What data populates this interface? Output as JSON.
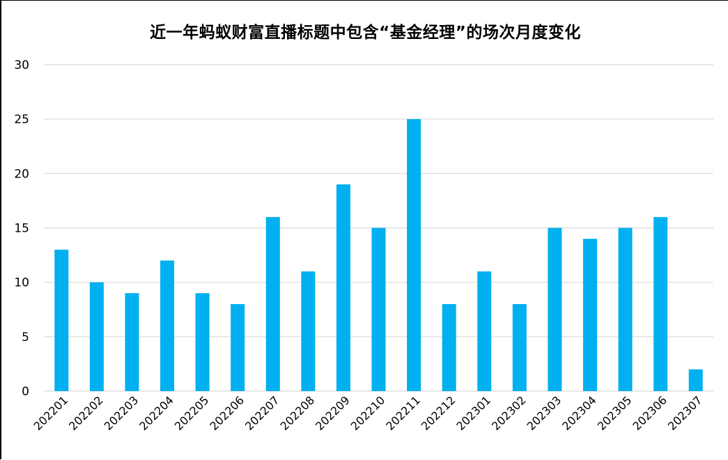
{
  "chart_data": {
    "type": "bar",
    "title": "近一年蚂蚁财富直播标题中包含“基金经理”的场次月度变化",
    "xlabel": "",
    "ylabel": "",
    "categories": [
      "202201",
      "202202",
      "202203",
      "202204",
      "202205",
      "202206",
      "202207",
      "202208",
      "202209",
      "202210",
      "202211",
      "202212",
      "202301",
      "202302",
      "202303",
      "202304",
      "202305",
      "202306",
      "202307"
    ],
    "values": [
      13,
      10,
      9,
      12,
      9,
      8,
      16,
      11,
      19,
      15,
      25,
      8,
      11,
      8,
      15,
      14,
      15,
      16,
      2
    ],
    "ylim": [
      0,
      30
    ],
    "yticks": [
      "0",
      "5",
      "10",
      "15",
      "20",
      "25",
      "30"
    ],
    "grid": true,
    "legend": "none",
    "colors": {
      "bar": "#00B0F0",
      "grid": "#D9D9D9"
    }
  }
}
